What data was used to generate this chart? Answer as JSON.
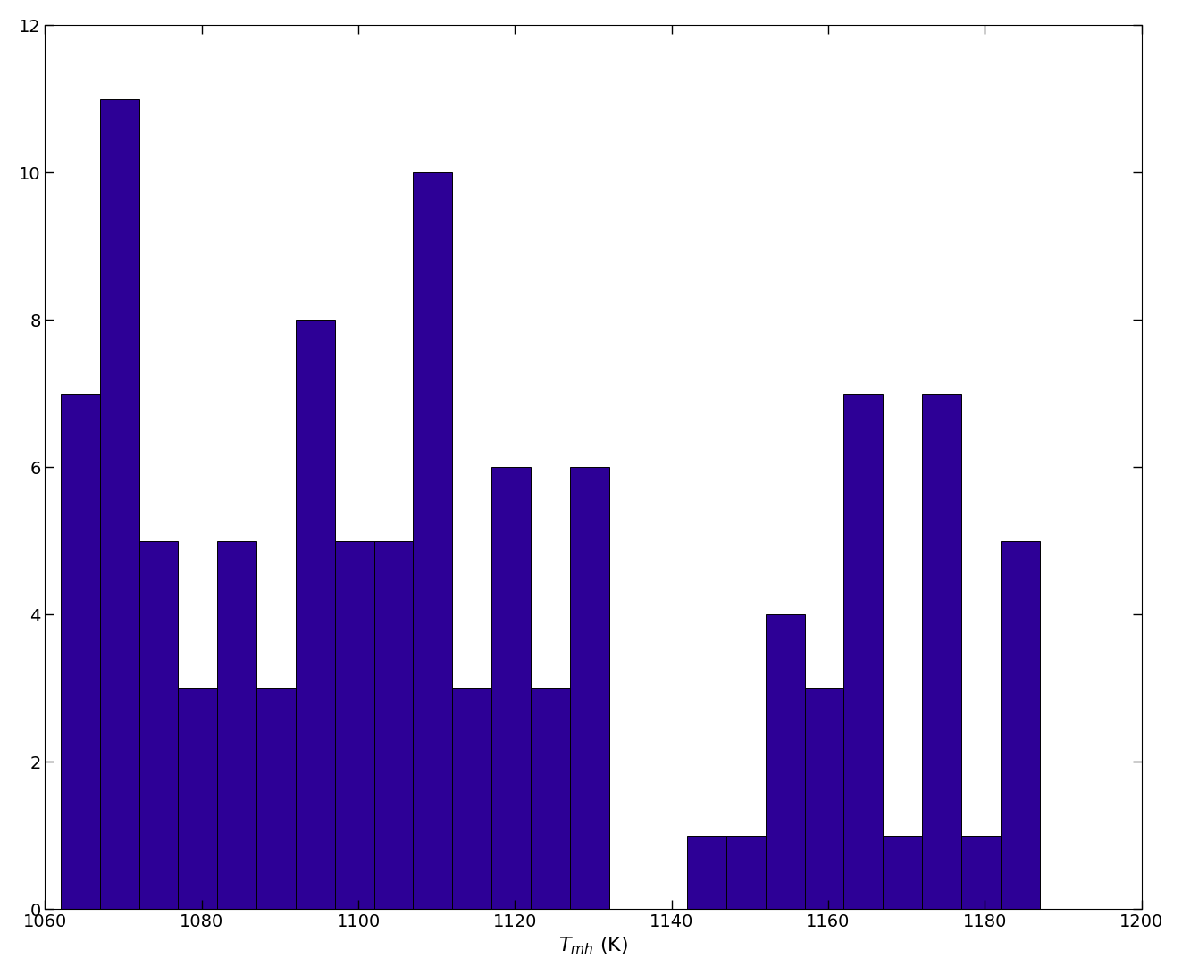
{
  "bin_width": 5,
  "x_start": 1062,
  "bar_heights": [
    7,
    11,
    5,
    3,
    5,
    3,
    8,
    5,
    5,
    10,
    3,
    6,
    3,
    6,
    0,
    0,
    1,
    1,
    4,
    3,
    7,
    1,
    7,
    1,
    5
  ],
  "bar_color": "#2d0096",
  "bar_edgecolor": "#000000",
  "bar_linewidth": 0.7,
  "xlim": [
    1060,
    1200
  ],
  "ylim": [
    0,
    12
  ],
  "yticks": [
    0,
    2,
    4,
    6,
    8,
    10,
    12
  ],
  "xticks": [
    1060,
    1080,
    1100,
    1120,
    1140,
    1160,
    1180,
    1200
  ],
  "xlabel": "$T_{mh}$ (K)",
  "xlabel_fontsize": 16,
  "tick_fontsize": 14,
  "figsize": [
    13.23,
    10.92
  ],
  "dpi": 100
}
